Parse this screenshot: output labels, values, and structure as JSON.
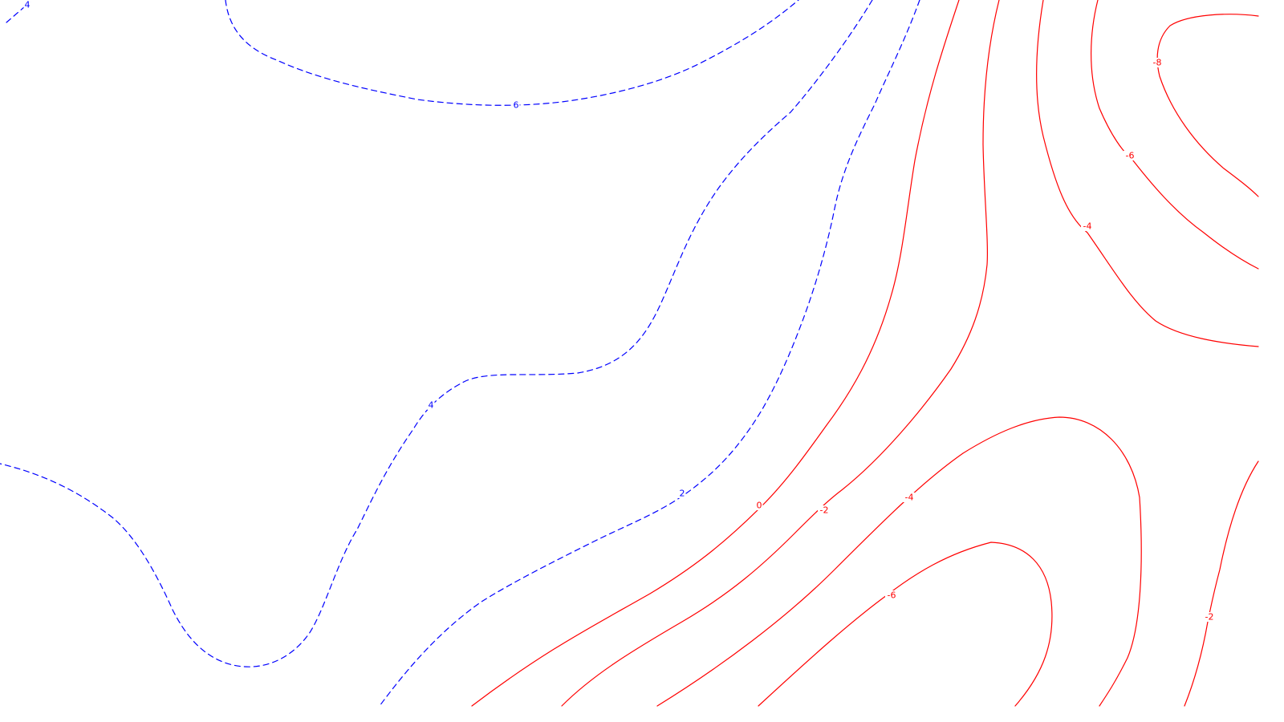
{
  "colors": {
    "positive": "#0000ff",
    "negative": "#ff0000",
    "background": "#ffffff"
  },
  "style": {
    "positive_contours": "dashed",
    "negative_contours": "solid",
    "axes": "none",
    "grid": false,
    "legend": "none"
  },
  "contour_levels": [
    {
      "value": 6,
      "label": "6",
      "sign": "positive"
    },
    {
      "value": 4,
      "label": "4",
      "sign": "positive"
    },
    {
      "value": 4,
      "label": "4",
      "sign": "positive"
    },
    {
      "value": 2,
      "label": "2",
      "sign": "positive"
    },
    {
      "value": 0,
      "label": "0",
      "sign": "negative"
    },
    {
      "value": -2,
      "label": "-2",
      "sign": "negative"
    },
    {
      "value": -4,
      "label": "-4",
      "sign": "negative"
    },
    {
      "value": -6,
      "label": "-6",
      "sign": "negative"
    },
    {
      "value": -4,
      "label": "-4",
      "sign": "negative"
    },
    {
      "value": -6,
      "label": "-6",
      "sign": "negative"
    },
    {
      "value": -8,
      "label": "-8",
      "sign": "negative"
    },
    {
      "value": -2,
      "label": "-2",
      "sign": "negative"
    }
  ]
}
